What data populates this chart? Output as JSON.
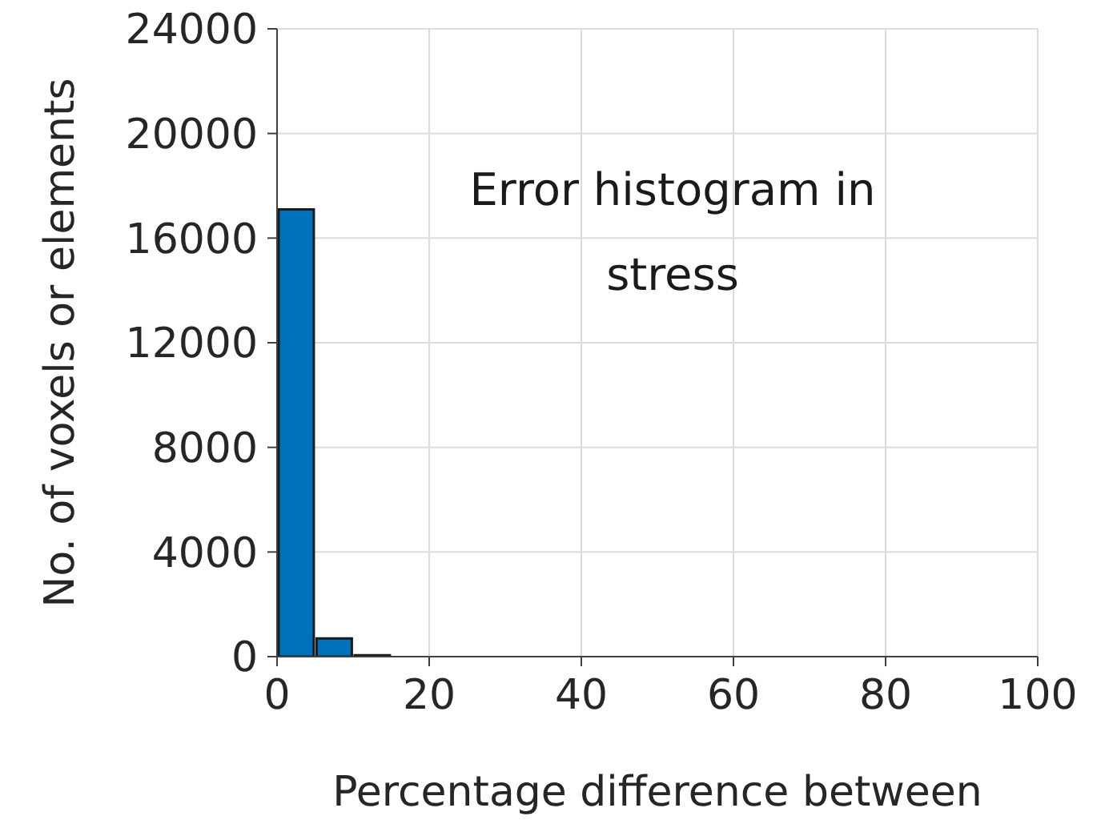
{
  "chart_data": {
    "type": "histogram",
    "xlabel": "Percentage difference between",
    "ylabel": "No. of voxels or elements",
    "annotations": [
      "Error histogram in stress"
    ],
    "bins": [
      0,
      5,
      10,
      15,
      20,
      25,
      30,
      35,
      40,
      45,
      50,
      55,
      60,
      65,
      70,
      75,
      80,
      85,
      90,
      95,
      100
    ],
    "values": [
      17100,
      700,
      50,
      0,
      0,
      0,
      0,
      0,
      0,
      0,
      0,
      0,
      0,
      0,
      0,
      0,
      0,
      0,
      0,
      0
    ],
    "color": "#0072bd",
    "xlim": [
      0,
      100
    ],
    "xticks": [
      0,
      20,
      40,
      60,
      80,
      100
    ],
    "ylim": [
      0,
      24000
    ],
    "yticks": [
      0,
      4000,
      8000,
      12000,
      16000,
      20000,
      24000
    ],
    "grid": true
  }
}
